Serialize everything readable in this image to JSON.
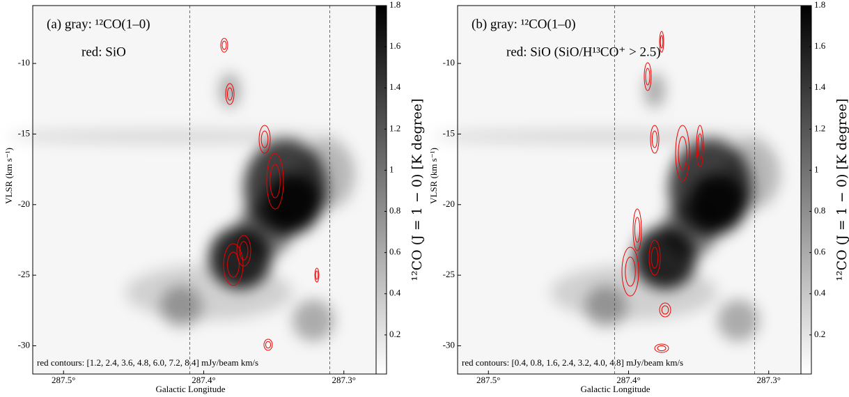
{
  "chart_data": [
    {
      "type": "heatmap",
      "annotations": [
        "(a) gray: ¹²CO(1–0)",
        "red: SiO",
        "red contours: [1.2, 2.4, 3.6, 4.8, 6.0, 7.2, 8.4] mJy/beam km/s"
      ],
      "xlabel": "Galactic Longitude",
      "ylabel": "VLSR (km s⁻¹)",
      "xlim": [
        287.522,
        287.277
      ],
      "ylim": [
        -32,
        -5.9
      ],
      "xticks": [
        {
          "value": 287.5,
          "label": "287.5°"
        },
        {
          "value": 287.4,
          "label": "287.4°"
        },
        {
          "value": 287.3,
          "label": "287.3°"
        }
      ],
      "yticks": [
        -10,
        -15,
        -20,
        -25,
        -30
      ],
      "dashed_lines": [
        287.41,
        287.31
      ],
      "colorbar_label": "¹²CO (J = 1 − 0) [K degree]",
      "clim": [
        0.01,
        1.8
      ],
      "cticks": [
        0.2,
        0.4,
        0.6,
        0.8,
        1.0,
        1.2,
        1.4,
        1.6,
        1.8
      ]
    },
    {
      "type": "heatmap",
      "annotations": [
        "(b) gray: ¹²CO(1–0)",
        "red: SiO (SiO/H¹³CO⁺ > 2.5)",
        "red contours: [0.4, 0.8, 1.6, 2.4, 3.2, 4.0, 4.8] mJy/beam km/s"
      ],
      "xlabel": "Galactic Longitude",
      "ylabel": "VLSR (km s⁻¹)",
      "xlim": [
        287.522,
        287.277
      ],
      "ylim": [
        -32,
        -5.9
      ],
      "xticks": [
        {
          "value": 287.5,
          "label": "287.5°"
        },
        {
          "value": 287.4,
          "label": "287.4°"
        },
        {
          "value": 287.3,
          "label": "287.3°"
        }
      ],
      "yticks": [
        -10,
        -15,
        -20,
        -25,
        -30
      ],
      "dashed_lines": [
        287.41,
        287.31
      ],
      "colorbar_label": "¹²CO (J = 1 − 0) [K degree]",
      "clim": [
        0.01,
        1.8
      ],
      "cticks": [
        0.2,
        0.4,
        0.6,
        0.8,
        1.0,
        1.2,
        1.4,
        1.6,
        1.8
      ]
    }
  ]
}
